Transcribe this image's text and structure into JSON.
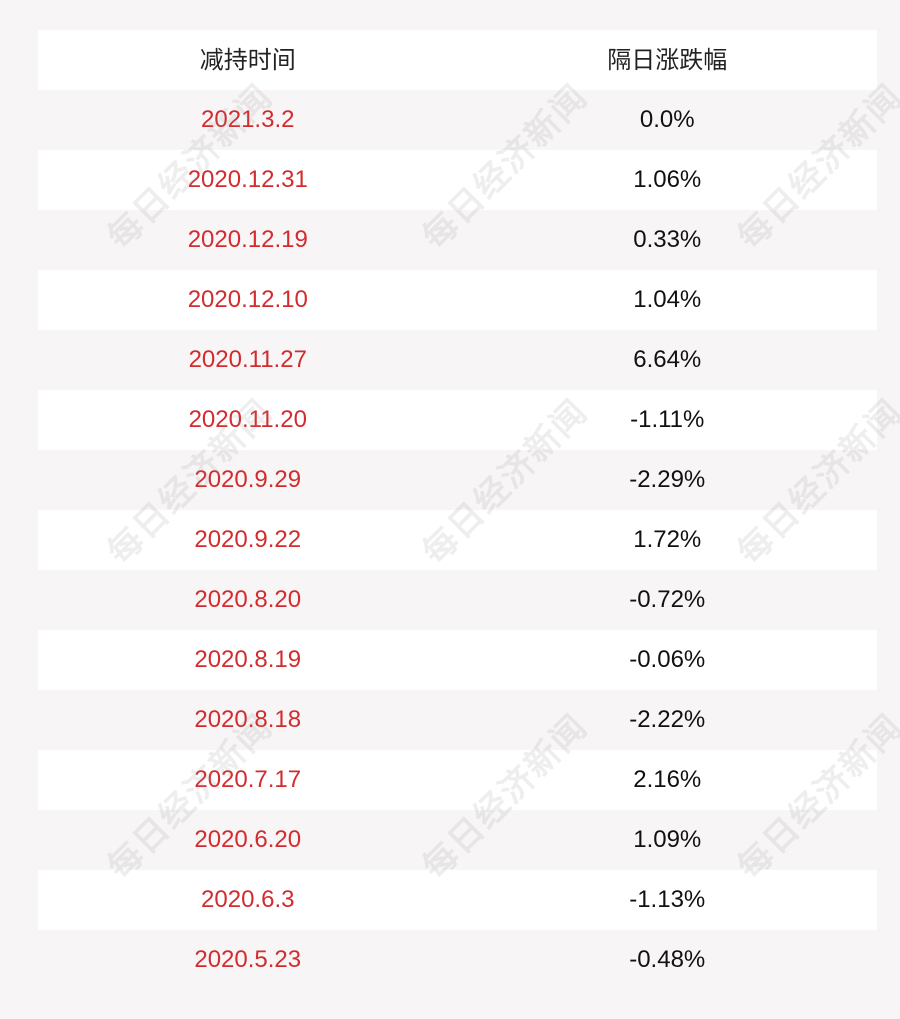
{
  "header": {
    "col1": "减持时间",
    "col2": "隔日涨跌幅"
  },
  "rows": [
    {
      "date": "2021.3.2",
      "change": "0.0%"
    },
    {
      "date": "2020.12.31",
      "change": "1.06%"
    },
    {
      "date": "2020.12.19",
      "change": "0.33%"
    },
    {
      "date": "2020.12.10",
      "change": "1.04%"
    },
    {
      "date": "2020.11.27",
      "change": "6.64%"
    },
    {
      "date": "2020.11.20",
      "change": "-1.11%"
    },
    {
      "date": "2020.9.29",
      "change": "-2.29%"
    },
    {
      "date": "2020.9.22",
      "change": "1.72%"
    },
    {
      "date": "2020.8.20",
      "change": "-0.72%"
    },
    {
      "date": "2020.8.19",
      "change": "-0.06%"
    },
    {
      "date": "2020.8.18",
      "change": "-2.22%"
    },
    {
      "date": "2020.7.17",
      "change": "2.16%"
    },
    {
      "date": "2020.6.20",
      "change": "1.09%"
    },
    {
      "date": "2020.6.3",
      "change": "-1.13%"
    },
    {
      "date": "2020.5.23",
      "change": "-0.48%"
    }
  ],
  "watermark": {
    "text": "每日经济新闻"
  },
  "colors": {
    "date_text": "#d22c2f",
    "row_white": "#ffffff",
    "row_tinted": "#f8f5f6"
  }
}
